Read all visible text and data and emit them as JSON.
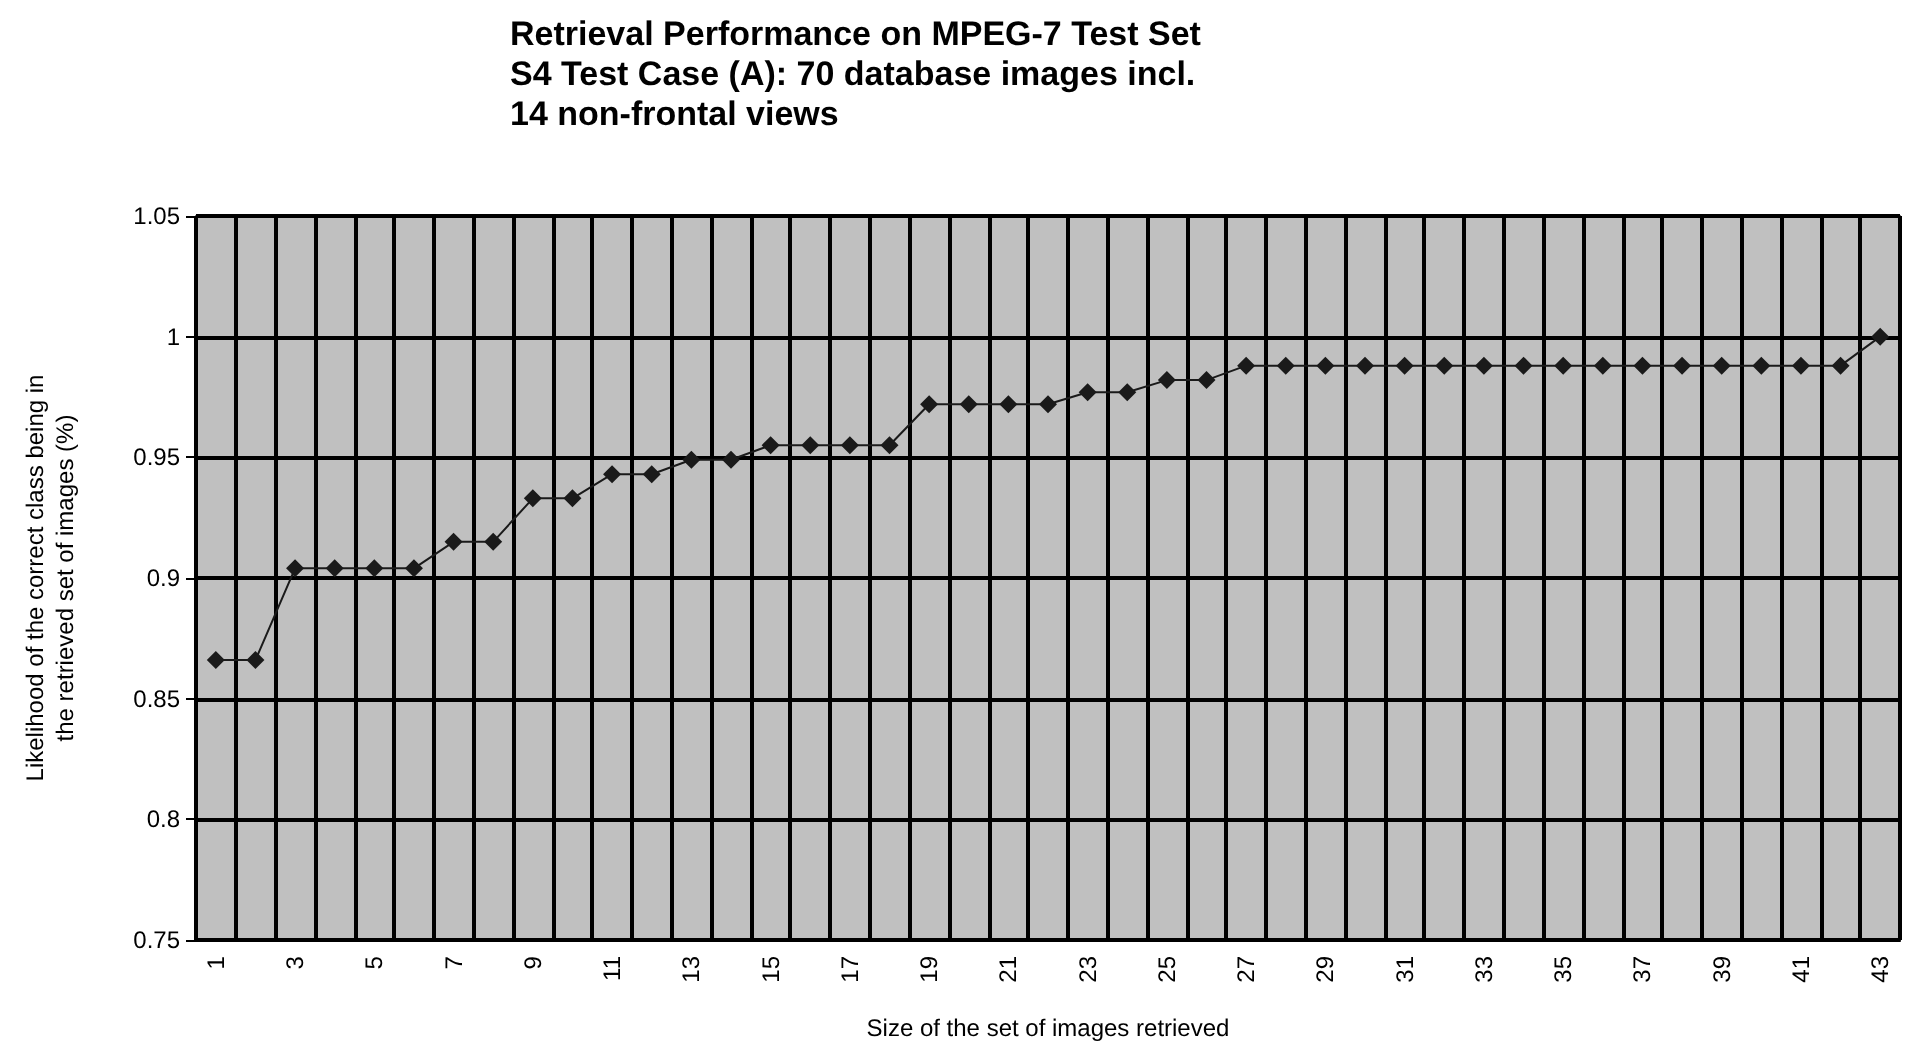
{
  "chart_data": {
    "type": "line",
    "title": "Retrieval Performance on MPEG-7 Test Set\nS4 Test Case (A): 70 database images incl.\n14 non-frontal views",
    "xlabel": "Size of the set of images retrieved",
    "ylabel": "Likelihood of the correct class being in\nthe retrieved set of images (%)",
    "categories": [
      "1",
      null,
      "3",
      null,
      "5",
      null,
      "7",
      null,
      "9",
      null,
      "11",
      null,
      "13",
      null,
      "15",
      null,
      "17",
      null,
      "19",
      null,
      "21",
      null,
      "23",
      null,
      "25",
      null,
      "27",
      null,
      "29",
      null,
      "31",
      null,
      "33",
      null,
      "35",
      null,
      "37",
      null,
      "39",
      null,
      "41",
      null,
      "43"
    ],
    "series": [
      {
        "color": "#1a1a1a",
        "values": [
          0.866,
          0.866,
          0.904,
          0.904,
          0.904,
          0.904,
          0.915,
          0.915,
          0.933,
          0.933,
          0.943,
          0.943,
          0.949,
          0.949,
          0.955,
          0.955,
          0.955,
          0.955,
          0.972,
          0.972,
          0.972,
          0.972,
          0.977,
          0.977,
          0.982,
          0.982,
          0.988,
          0.988,
          0.988,
          0.988,
          0.988,
          0.988,
          0.988,
          0.988,
          0.988,
          0.988,
          0.988,
          0.988,
          0.988,
          0.988,
          0.988,
          0.988,
          1.0
        ]
      }
    ],
    "ylim": [
      0.75,
      1.05
    ],
    "yticks": [
      0.75,
      0.8,
      0.85,
      0.9,
      0.95,
      1,
      1.05
    ],
    "grid": true,
    "marker": "diamond",
    "line_style": "solid"
  }
}
